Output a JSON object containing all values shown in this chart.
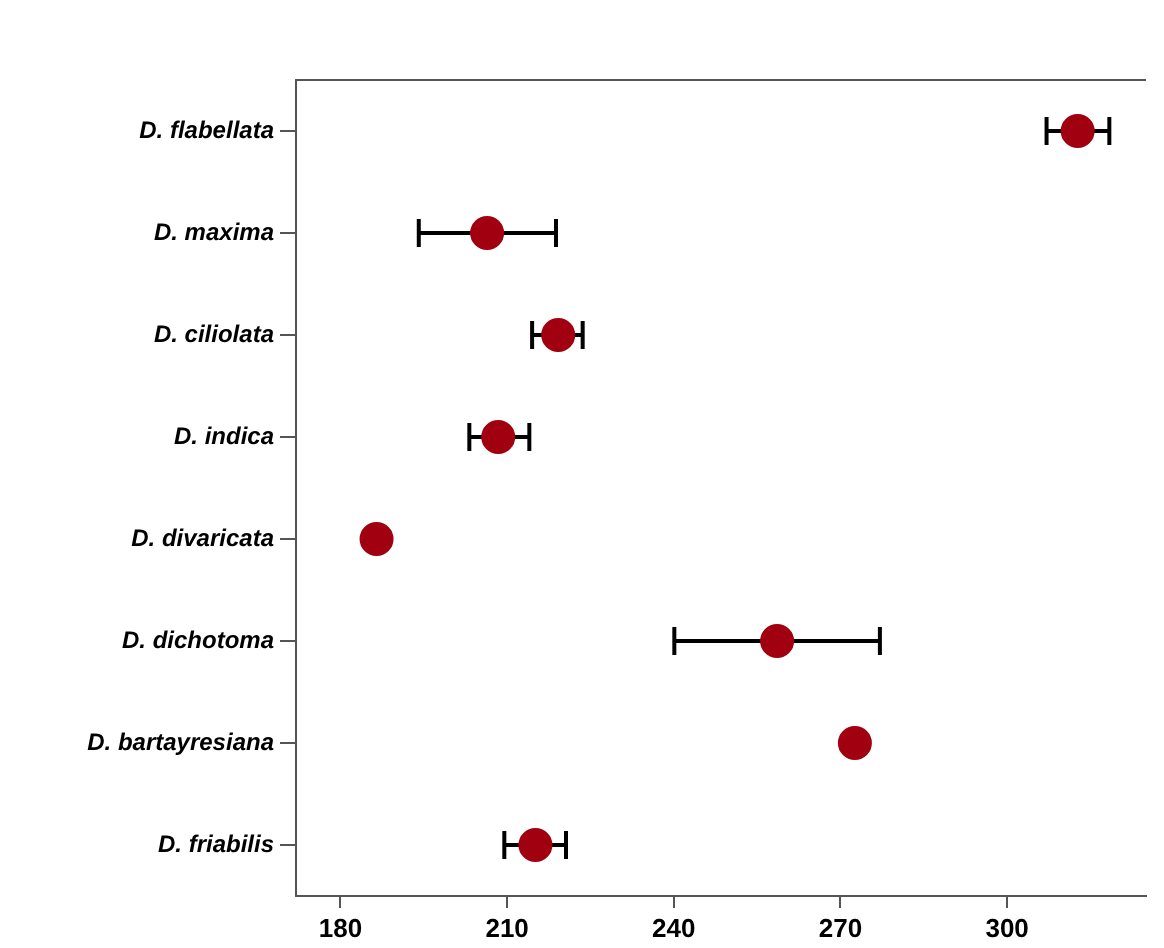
{
  "chart_data": {
    "type": "scatter",
    "orientation": "horizontal",
    "marker": "circle",
    "color": "#a0000f",
    "categories": [
      "D. flabellata",
      "D. maxima",
      "D. ciliolata",
      "D. indica",
      "D. divaricata",
      "D. dichotoma",
      "D. bartayresiana",
      "D. friabilis"
    ],
    "values": [
      312.7,
      206.4,
      219.2,
      208.4,
      186.5,
      258.6,
      272.6,
      215.1
    ],
    "errors": [
      [
        307.1,
        318.4
      ],
      [
        194.1,
        218.8
      ],
      [
        214.5,
        223.6
      ],
      [
        203.2,
        214.0
      ],
      null,
      [
        240.1,
        277.1
      ],
      null,
      [
        209.5,
        220.6
      ]
    ],
    "xlim": [
      172,
      325
    ],
    "xticks": [
      180,
      210,
      240,
      270,
      300
    ]
  }
}
